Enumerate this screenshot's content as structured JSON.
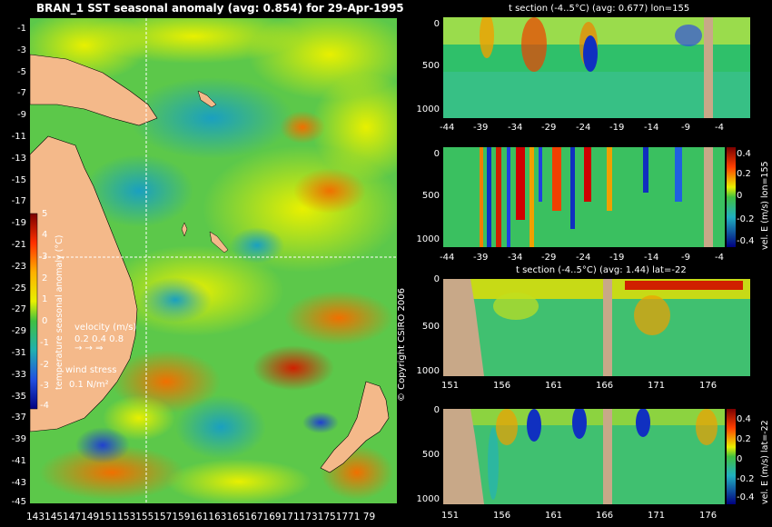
{
  "map": {
    "title": "BRAN_1 SST seasonal anomaly (avg: 0.854) for 29-Apr-1995",
    "lat_labels": [
      "-1",
      "-3",
      "-5",
      "-7",
      "-9",
      "-11",
      "-13",
      "-15",
      "-17",
      "-19",
      "-21",
      "-23",
      "-25",
      "-27",
      "-29",
      "-31",
      "-33",
      "-35",
      "-37",
      "-39",
      "-41",
      "-43",
      "-45"
    ],
    "lon_labels": "1431451471491511531551571591611631651671691711731751771 79",
    "colorbar": {
      "label": "temperature seasonal anomaly (°C)",
      "ticks": [
        "5",
        "4",
        "3",
        "2",
        "1",
        "0",
        "-1",
        "-2",
        "-3",
        "-4"
      ]
    },
    "legend": {
      "velocity_title": "velocity (m/s)",
      "velocity_scale": "0.2 0.4 0.8",
      "wind_title": "wind stress",
      "wind_scale": "0.1 N/m²"
    },
    "colors": {
      "land": "#f4b98a",
      "ocean_base": "#4bc34b",
      "crosshair": "#ffffff"
    }
  },
  "sections": [
    {
      "title": "t section (-4..5°C) (avg: 0.677) lon=155",
      "y_ticks": [
        "0",
        "500",
        "1000"
      ],
      "x_ticks": [
        "-44",
        "-39",
        "-34",
        "-29",
        "-24",
        "-19",
        "-14",
        "-9",
        "-4"
      ]
    },
    {
      "title": "",
      "y_ticks": [
        "0",
        "500",
        "1000"
      ],
      "x_ticks": [
        "-44",
        "-39",
        "-34",
        "-29",
        "-24",
        "-19",
        "-14",
        "-9",
        "-4"
      ],
      "side_label": "vel. E (m/s) lon=155",
      "cbar_ticks": [
        "0.4",
        "0.2",
        "0",
        "-0.2",
        "-0.4"
      ]
    },
    {
      "title": "t section (-4..5°C) (avg: 1.44) lat=-22",
      "y_ticks": [
        "0",
        "500",
        "1000"
      ],
      "x_ticks": [
        "151",
        "156",
        "161",
        "166",
        "171",
        "176"
      ]
    },
    {
      "title": "",
      "y_ticks": [
        "0",
        "500",
        "1000"
      ],
      "x_ticks": [
        "151",
        "156",
        "161",
        "166",
        "171",
        "176"
      ],
      "side_label": "vel. E (m/s) lat=-22",
      "cbar_ticks": [
        "0.4",
        "0.2",
        "0",
        "-0.2",
        "-0.4"
      ]
    }
  ],
  "copyright": "© Copyright CSIRO 2006"
}
